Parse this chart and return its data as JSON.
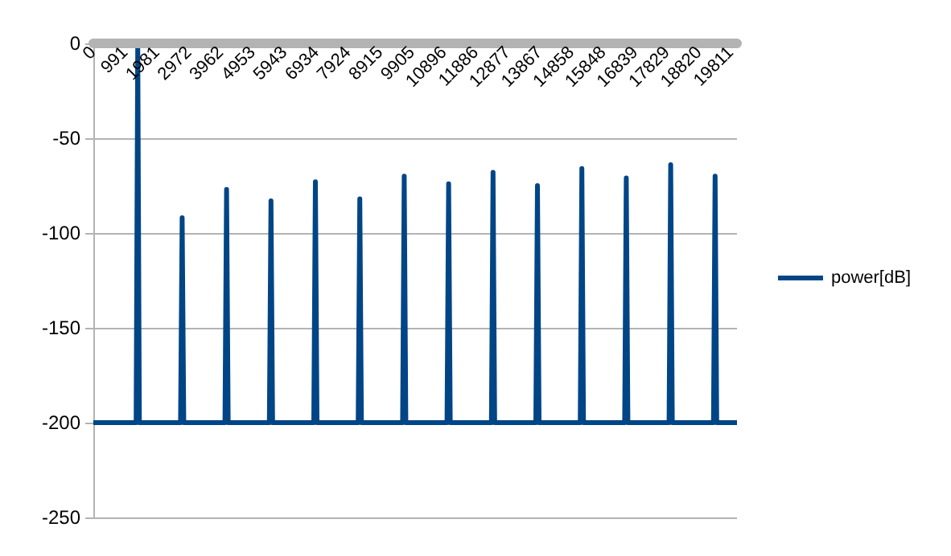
{
  "chart_data": {
    "type": "line",
    "legend": "right",
    "grid": "y",
    "marker": "none",
    "line_style": "solid",
    "x": [
      0,
      1330,
      1380,
      1430,
      2710,
      2760,
      2810,
      4090,
      4140,
      4190,
      5470,
      5520,
      5570,
      6850,
      6900,
      6950,
      8230,
      8280,
      8330,
      9610,
      9660,
      9710,
      10990,
      11040,
      11090,
      12370,
      12420,
      12470,
      13750,
      13800,
      13850,
      15130,
      15180,
      15230,
      16510,
      16560,
      16610,
      17890,
      17940,
      17990,
      19270,
      19320,
      19370,
      20000
    ],
    "series": [
      {
        "name": "power[dB]",
        "color": "#004586",
        "values": [
          -200,
          -200,
          0,
          -200,
          -200,
          -92,
          -200,
          -200,
          -77,
          -200,
          -200,
          -83,
          -200,
          -200,
          -73,
          -200,
          -200,
          -82,
          -200,
          -200,
          -70,
          -200,
          -200,
          -74,
          -200,
          -200,
          -68,
          -200,
          -200,
          -75,
          -200,
          -200,
          -66,
          -200,
          -200,
          -71,
          -200,
          -200,
          -64,
          -200,
          -200,
          -70,
          -200,
          -200
        ]
      }
    ],
    "xlim": [
      0,
      20000
    ],
    "xticks": [
      0,
      991,
      1981,
      2972,
      3962,
      4953,
      5943,
      6934,
      7924,
      8915,
      9905,
      10896,
      11886,
      12877,
      13867,
      14858,
      15848,
      16839,
      17829,
      18820,
      19811
    ],
    "ylim": [
      -250,
      0
    ],
    "yticks": [
      -250,
      -200,
      -150,
      -100,
      -50,
      0
    ]
  }
}
